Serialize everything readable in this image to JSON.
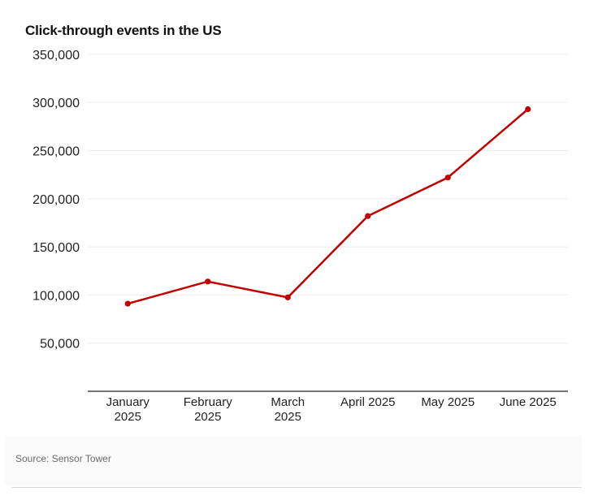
{
  "chart_data": {
    "type": "line",
    "title": "Click-through events in the US",
    "xlabel": "",
    "ylabel": "",
    "categories": [
      [
        "January",
        "2025"
      ],
      [
        "February",
        "2025"
      ],
      [
        "March",
        "2025"
      ],
      [
        "April 2025"
      ],
      [
        "May 2025"
      ],
      [
        "June 2025"
      ]
    ],
    "yticks": [
      "50,000",
      "100,000",
      "150,000",
      "200,000",
      "250,000",
      "300,000",
      "350,000"
    ],
    "ylim": [
      0,
      350000
    ],
    "grid": true,
    "series": [
      {
        "values": [
          91000,
          114000,
          97500,
          182000,
          222000,
          293000
        ]
      }
    ],
    "colors": {
      "line": "#c00000",
      "grid": "#ebebeb",
      "axis": "#222222",
      "text": "#222222"
    }
  },
  "footer": {
    "source": "Source: Sensor Tower"
  }
}
